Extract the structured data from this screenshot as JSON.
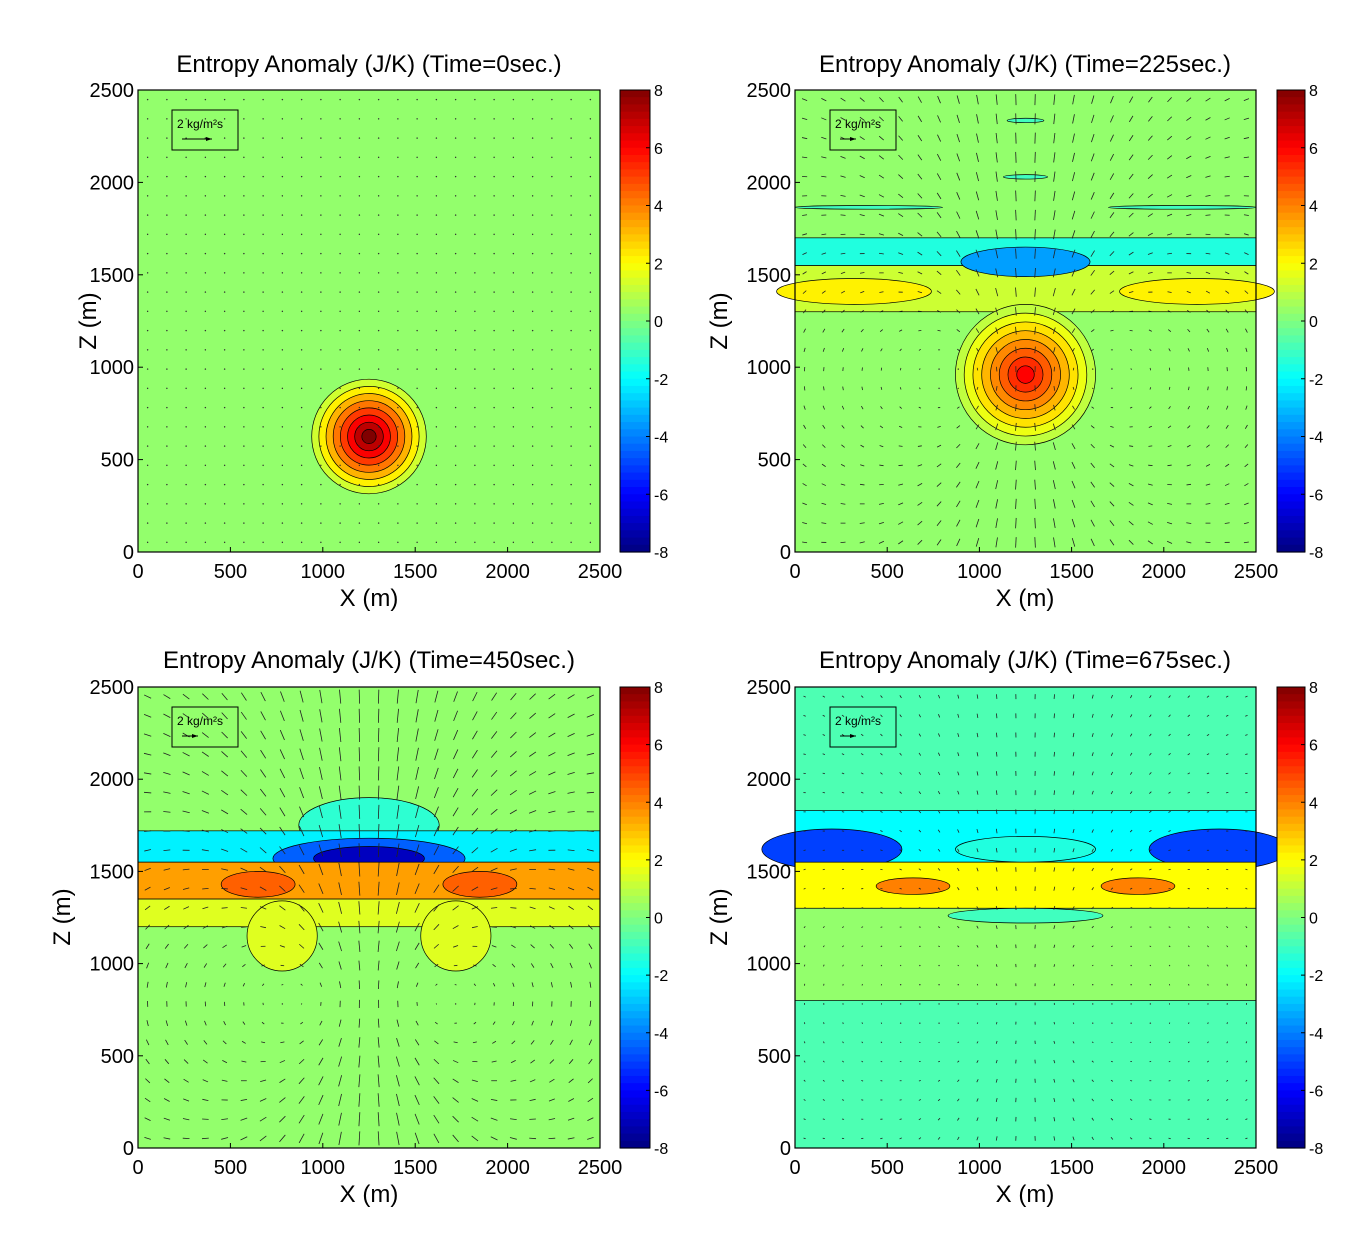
{
  "figure": {
    "panels": [
      {
        "title": "Entropy Anomaly (J/K)  (Time=0sec.)",
        "xlabel": "X (m)",
        "ylabel": "Z (m)",
        "legend": "2 kg/m²s"
      },
      {
        "title": "Entropy Anomaly (J/K)  (Time=225sec.)",
        "xlabel": "X (m)",
        "ylabel": "Z (m)",
        "legend": "2 kg/m²s"
      },
      {
        "title": "Entropy Anomaly (J/K)  (Time=450sec.)",
        "xlabel": "X (m)",
        "ylabel": "Z (m)",
        "legend": "2 kg/m²s"
      },
      {
        "title": "Entropy Anomaly (J/K)  (Time=675sec.)",
        "xlabel": "X (m)",
        "ylabel": "Z (m)",
        "legend": "2 kg/m²s"
      }
    ]
  },
  "chart_data": [
    {
      "type": "heatmap",
      "title": "Entropy Anomaly (J/K)  (Time=0sec.)",
      "xlabel": "X (m)",
      "ylabel": "Z (m)",
      "xlim": [
        0,
        2500
      ],
      "ylim": [
        0,
        2500
      ],
      "xticks": [
        0,
        500,
        1000,
        1500,
        2000,
        2500
      ],
      "yticks": [
        0,
        500,
        1000,
        1500,
        2000,
        2500
      ],
      "colorbar": {
        "range": [
          -8,
          8
        ],
        "ticks": [
          8,
          6,
          4,
          2,
          0,
          -2,
          -4,
          -6,
          -8
        ],
        "colormap": "jet"
      },
      "background_value": 0.3,
      "features": [
        {
          "shape": "disc",
          "x": 1250,
          "z": 625,
          "rx": 310,
          "rz": 310,
          "peak": 8
        }
      ],
      "vector_field": "quiescent"
    },
    {
      "type": "heatmap",
      "title": "Entropy Anomaly (J/K)  (Time=225sec.)",
      "xlabel": "X (m)",
      "ylabel": "Z (m)",
      "xlim": [
        0,
        2500
      ],
      "ylim": [
        0,
        2500
      ],
      "xticks": [
        0,
        500,
        1000,
        1500,
        2000,
        2500
      ],
      "yticks": [
        0,
        500,
        1000,
        1500,
        2000,
        2500
      ],
      "colorbar": {
        "range": [
          -8,
          8
        ],
        "ticks": [
          8,
          6,
          4,
          2,
          0,
          -2,
          -4,
          -6,
          -8
        ],
        "colormap": "jet"
      },
      "background_value": 0.3,
      "features": [
        {
          "shape": "band",
          "z_bottom": 1550,
          "z_top": 1700,
          "value": -1.5
        },
        {
          "shape": "band",
          "z_bottom": 1300,
          "z_top": 1550,
          "value": 1.2
        },
        {
          "shape": "ellipse",
          "x": 1250,
          "z": 1570,
          "rx": 350,
          "rz": 80,
          "value": -3.5
        },
        {
          "shape": "ellipse",
          "x": 320,
          "z": 1410,
          "rx": 420,
          "rz": 70,
          "value": 2.2
        },
        {
          "shape": "ellipse",
          "x": 2180,
          "z": 1410,
          "rx": 420,
          "rz": 70,
          "value": 2.2
        },
        {
          "shape": "disc",
          "x": 1250,
          "z": 960,
          "rx": 380,
          "rz": 380,
          "peak": 6
        },
        {
          "shape": "ellipse",
          "x": 1250,
          "z": 2335,
          "rx": 100,
          "rz": 12,
          "value": -1
        },
        {
          "shape": "ellipse",
          "x": 1250,
          "z": 2030,
          "rx": 120,
          "rz": 12,
          "value": -1
        },
        {
          "shape": "ellipse",
          "x": 400,
          "z": 1865,
          "rx": 400,
          "rz": 10,
          "value": -1
        },
        {
          "shape": "ellipse",
          "x": 2100,
          "z": 1865,
          "rx": 400,
          "rz": 10,
          "value": -1
        }
      ],
      "vector_field": "dipole"
    },
    {
      "type": "heatmap",
      "title": "Entropy Anomaly (J/K)  (Time=450sec.)",
      "xlabel": "X (m)",
      "ylabel": "Z (m)",
      "xlim": [
        0,
        2500
      ],
      "ylim": [
        0,
        2500
      ],
      "xticks": [
        0,
        500,
        1000,
        1500,
        2000,
        2500
      ],
      "yticks": [
        0,
        500,
        1000,
        1500,
        2000,
        2500
      ],
      "colorbar": {
        "range": [
          -8,
          8
        ],
        "ticks": [
          8,
          6,
          4,
          2,
          0,
          -2,
          -4,
          -6,
          -8
        ],
        "colormap": "jet"
      },
      "background_value": 0.3,
      "features": [
        {
          "shape": "ellipse",
          "x": 1250,
          "z": 1750,
          "rx": 380,
          "rz": 150,
          "value": -1.3
        },
        {
          "shape": "band",
          "z_bottom": 1550,
          "z_top": 1720,
          "value": -2.2
        },
        {
          "shape": "ellipse",
          "x": 1250,
          "z": 1570,
          "rx": 520,
          "rz": 110,
          "value": -4.5
        },
        {
          "shape": "ellipse",
          "x": 1250,
          "z": 1570,
          "rx": 300,
          "rz": 65,
          "value": -7
        },
        {
          "shape": "band",
          "z_bottom": 1350,
          "z_top": 1550,
          "value": 3.5
        },
        {
          "shape": "band",
          "z_bottom": 1200,
          "z_top": 1350,
          "value": 1.5
        },
        {
          "shape": "ellipse",
          "x": 780,
          "z": 1150,
          "rx": 190,
          "rz": 190,
          "value": 1.5
        },
        {
          "shape": "ellipse",
          "x": 1720,
          "z": 1150,
          "rx": 190,
          "rz": 190,
          "value": 1.5
        },
        {
          "shape": "ellipse",
          "x": 650,
          "z": 1430,
          "rx": 200,
          "rz": 70,
          "value": 4.5
        },
        {
          "shape": "ellipse",
          "x": 1850,
          "z": 1430,
          "rx": 200,
          "rz": 70,
          "value": 4.5
        }
      ],
      "vector_field": "strong-dipole"
    },
    {
      "type": "heatmap",
      "title": "Entropy Anomaly (J/K)  (Time=675sec.)",
      "xlabel": "X (m)",
      "ylabel": "Z (m)",
      "xlim": [
        0,
        2500
      ],
      "ylim": [
        0,
        2500
      ],
      "xticks": [
        0,
        500,
        1000,
        1500,
        2000,
        2500
      ],
      "yticks": [
        0,
        500,
        1000,
        1500,
        2000,
        2500
      ],
      "colorbar": {
        "range": [
          -8,
          8
        ],
        "ticks": [
          8,
          6,
          4,
          2,
          0,
          -2,
          -4,
          -6,
          -8
        ],
        "colormap": "jet"
      },
      "background_value": -0.8,
      "features": [
        {
          "shape": "band",
          "z_bottom": 1550,
          "z_top": 1830,
          "value": -2
        },
        {
          "shape": "ellipse",
          "x": 200,
          "z": 1620,
          "rx": 380,
          "rz": 110,
          "value": -5
        },
        {
          "shape": "ellipse",
          "x": 2300,
          "z": 1620,
          "rx": 380,
          "rz": 110,
          "value": -5
        },
        {
          "shape": "ellipse",
          "x": 1250,
          "z": 1620,
          "rx": 380,
          "rz": 70,
          "value": -1.5
        },
        {
          "shape": "band",
          "z_bottom": 1300,
          "z_top": 1550,
          "value": 2
        },
        {
          "shape": "band",
          "z_bottom": 800,
          "z_top": 1300,
          "value": 0.3
        },
        {
          "shape": "ellipse",
          "x": 640,
          "z": 1420,
          "rx": 200,
          "rz": 45,
          "value": 4
        },
        {
          "shape": "ellipse",
          "x": 1860,
          "z": 1420,
          "rx": 200,
          "rz": 45,
          "value": 4
        },
        {
          "shape": "ellipse",
          "x": 1250,
          "z": 1260,
          "rx": 420,
          "rz": 40,
          "value": -1
        }
      ],
      "vector_field": "weak"
    }
  ]
}
